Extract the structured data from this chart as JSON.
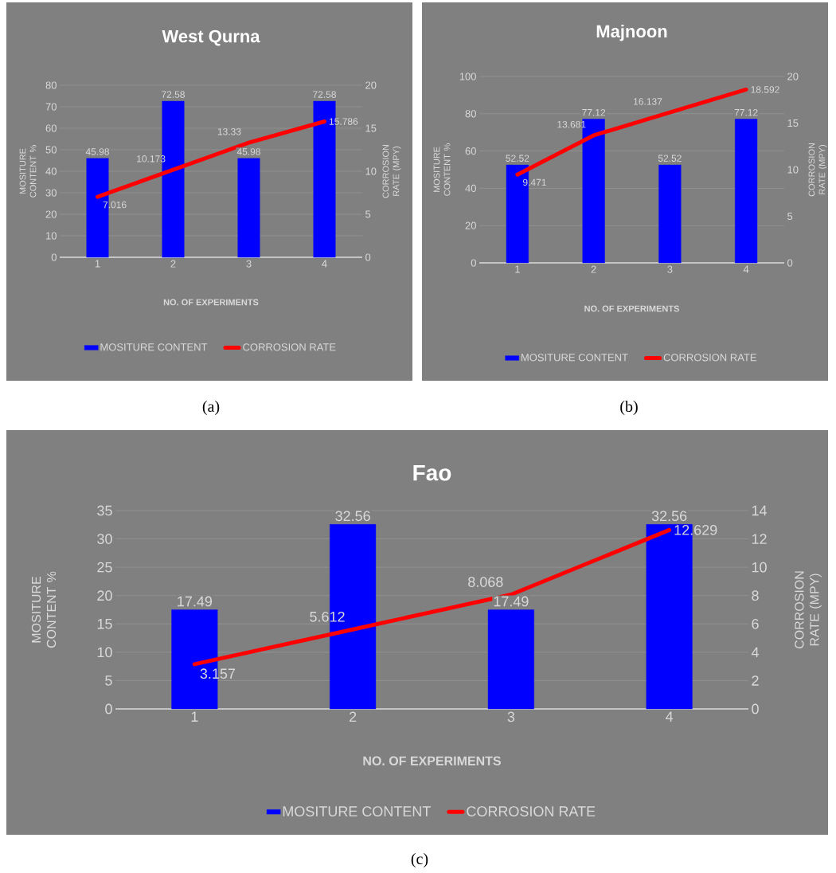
{
  "chart_data": [
    {
      "type": "bar",
      "title": "West Qurna",
      "xlabel": "NO. OF EXPERIMENTS",
      "ylabel": "MOSITURE CONTENT %",
      "y2label": "CORROSION RATE (MPY)",
      "categories": [
        "1",
        "2",
        "3",
        "4"
      ],
      "series": [
        {
          "name": "MOSITURE CONTENT",
          "color": "#0000ff",
          "values": [
            45.98,
            72.58,
            45.98,
            72.58
          ]
        },
        {
          "name": "CORROSION RATE",
          "type": "line",
          "axis": "y2",
          "color": "#ff0000",
          "values": [
            7.016,
            10.173,
            13.33,
            15.786
          ]
        }
      ],
      "ylim": [
        0,
        80
      ],
      "yticks": [
        0,
        10,
        20,
        30,
        40,
        50,
        60,
        70,
        80
      ],
      "y2lim": [
        0,
        20
      ],
      "y2ticks": [
        0,
        5,
        10,
        15,
        20
      ],
      "grid": "y",
      "legend": "bottom",
      "data_labels": true,
      "annotations": [
        "(a)"
      ]
    },
    {
      "type": "bar",
      "title": "Majnoon",
      "xlabel": "NO. OF EXPERIMENTS",
      "ylabel": "MOSITURE CONTENT %",
      "y2label": "CORROSION RATE (MPY)",
      "categories": [
        "1",
        "2",
        "3",
        "4"
      ],
      "series": [
        {
          "name": "MOSITURE CONTENT",
          "color": "#0000ff",
          "values": [
            52.52,
            77.12,
            52.52,
            77.12
          ]
        },
        {
          "name": "CORROSION RATE",
          "type": "line",
          "axis": "y2",
          "color": "#ff0000",
          "values": [
            9.471,
            13.681,
            16.137,
            18.592
          ]
        }
      ],
      "ylim": [
        0,
        100
      ],
      "yticks": [
        0,
        20,
        40,
        60,
        80,
        100
      ],
      "y2lim": [
        0,
        20
      ],
      "y2ticks": [
        0,
        5,
        10,
        15,
        20
      ],
      "grid": "y",
      "legend": "bottom",
      "data_labels": true,
      "annotations": [
        "(b)"
      ]
    },
    {
      "type": "bar",
      "title": "Fao",
      "xlabel": "NO. OF EXPERIMENTS",
      "ylabel": "MOSITURE CONTENT %",
      "y2label": "CORROSION RATE (MPY)",
      "categories": [
        "1",
        "2",
        "3",
        "4"
      ],
      "series": [
        {
          "name": "MOSITURE CONTENT",
          "color": "#0000ff",
          "values": [
            17.49,
            32.56,
            17.49,
            32.56
          ]
        },
        {
          "name": "CORROSION RATE",
          "type": "line",
          "axis": "y2",
          "color": "#ff0000",
          "values": [
            3.157,
            5.612,
            8.068,
            12.629
          ]
        }
      ],
      "ylim": [
        0,
        35
      ],
      "yticks": [
        0,
        5,
        10,
        15,
        20,
        25,
        30,
        35
      ],
      "y2lim": [
        0,
        14
      ],
      "y2ticks": [
        0,
        2,
        4,
        6,
        8,
        10,
        12,
        14
      ],
      "grid": "y",
      "legend": "bottom",
      "data_labels": true,
      "annotations": [
        "(c)"
      ]
    }
  ]
}
